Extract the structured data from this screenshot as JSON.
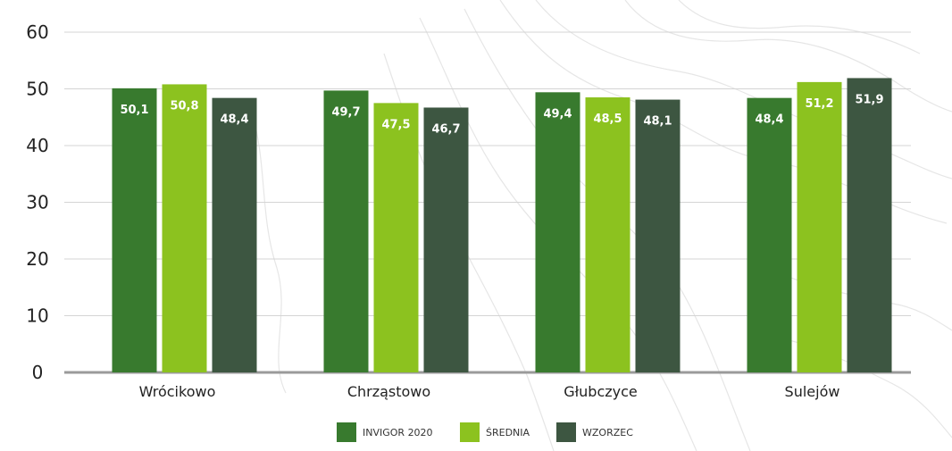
{
  "chart_data": {
    "type": "bar",
    "title": "",
    "xlabel": "",
    "ylabel": "",
    "ylim": [
      0,
      60
    ],
    "yticks": [
      0,
      10,
      20,
      30,
      40,
      50,
      60
    ],
    "grid": true,
    "legend_placement": "bottom",
    "categories": [
      "Wrócikowo",
      "Chrząstowo",
      "Głubczyce",
      "Sulejów"
    ],
    "series": [
      {
        "name": "INVIGOR 2020",
        "color": "#387a2e",
        "values": [
          50.1,
          49.7,
          49.4,
          48.4
        ],
        "labels": [
          "50,1",
          "49,7",
          "49,4",
          "48,4"
        ]
      },
      {
        "name": "ŚREDNIA",
        "color": "#8cc21f",
        "values": [
          50.8,
          47.5,
          48.5,
          51.2
        ],
        "labels": [
          "50,8",
          "47,5",
          "48,5",
          "51,2"
        ]
      },
      {
        "name": "WZORZEC",
        "color": "#3d5641",
        "values": [
          48.4,
          46.7,
          48.1,
          51.9
        ],
        "labels": [
          "48,4",
          "46,7",
          "48,1",
          "51,9"
        ]
      }
    ]
  }
}
